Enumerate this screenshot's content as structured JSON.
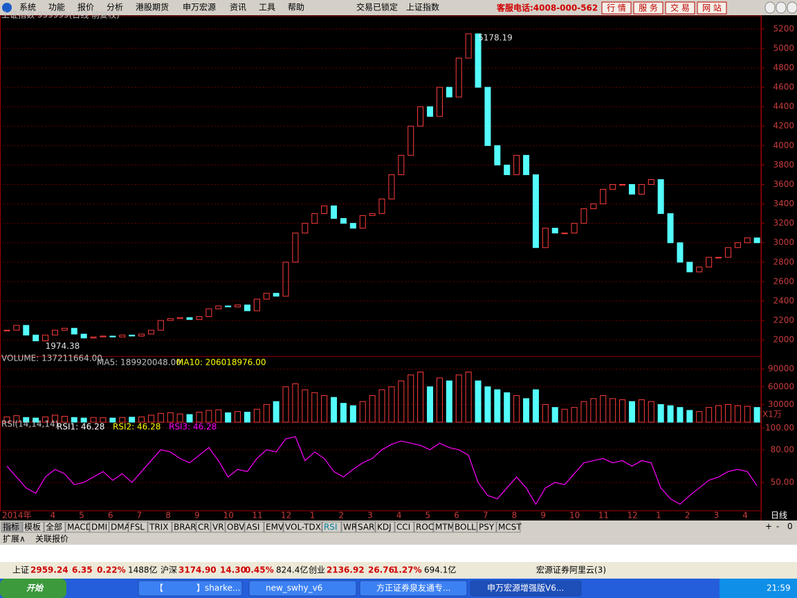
{
  "menu": {
    "items": [
      "系统",
      "功能",
      "报价",
      "分析",
      "港股期货",
      "申万宏源",
      "资讯",
      "工具",
      "帮助"
    ],
    "status": "交易已锁定",
    "index": "上证指数",
    "hotline": "客服电话:4008-000-562",
    "buttons": [
      "行 情",
      "服 务",
      "交 易",
      "网 站"
    ]
  },
  "chart_data": [
    {
      "type": "candlestick",
      "title": "上证指数 999999(日线 前复权)",
      "annotations": [
        "5178.19",
        "1974.38"
      ],
      "categories": [
        "2014年",
        null,
        null,
        null,
        null,
        "4",
        null,
        null,
        "5",
        null,
        null,
        "6",
        null,
        null,
        "7",
        null,
        null,
        "8",
        null,
        null,
        "9",
        null,
        null,
        "10",
        null,
        null,
        "11",
        null,
        null,
        "12",
        null,
        null,
        "1",
        null,
        null,
        "2",
        null,
        null,
        "3",
        null,
        null,
        "4",
        null,
        null,
        "5",
        null,
        null,
        "6",
        null,
        null,
        "7",
        null,
        null,
        "8",
        null,
        null,
        "9",
        null,
        null,
        "10",
        null,
        null,
        "11",
        null,
        null,
        "12",
        null,
        null,
        "1",
        null,
        null,
        "2",
        null,
        null,
        "3",
        null,
        null,
        "4",
        null
      ],
      "values": [
        2100,
        2150,
        2050,
        1990,
        2050,
        2100,
        2120,
        2060,
        2020,
        2030,
        2040,
        2030,
        2050,
        2040,
        2060,
        2100,
        2200,
        2220,
        2230,
        2210,
        2240,
        2320,
        2350,
        2340,
        2360,
        2300,
        2420,
        2480,
        2450,
        2800,
        3100,
        3200,
        3300,
        3380,
        3250,
        3200,
        3150,
        3280,
        3300,
        3450,
        3700,
        3900,
        4200,
        4400,
        4300,
        4600,
        4500,
        4900,
        5150,
        4600,
        4000,
        3800,
        3700,
        3900,
        3700,
        2950,
        3150,
        3100,
        3100,
        3200,
        3350,
        3400,
        3550,
        3600,
        3600,
        3500,
        3600,
        3650,
        3300,
        3000,
        2800,
        2700,
        2750,
        2850,
        2850,
        2950,
        3000,
        3050,
        3000
      ],
      "ylim": [
        1830,
        5320
      ],
      "yticks": [
        2000,
        2200,
        2400,
        2600,
        2800,
        3000,
        3200,
        3400,
        3600,
        3800,
        4000,
        4200,
        4400,
        4600,
        4800,
        5000,
        5200
      ],
      "up_color": "#ff3c3c",
      "down_color": "#54fcfc",
      "grid": true
    },
    {
      "type": "bar",
      "title": "VOLUME: 137211664.00",
      "annotations": [
        "MA5: 189920048.00",
        "MA10: 206018976.00"
      ],
      "unit": "X1万",
      "values": [
        9000,
        11000,
        8000,
        7000,
        9000,
        12000,
        10000,
        8000,
        7000,
        8000,
        7500,
        7000,
        8000,
        8500,
        9000,
        12000,
        15000,
        16000,
        14000,
        13000,
        17000,
        20000,
        21000,
        16000,
        18000,
        17000,
        22000,
        30000,
        35000,
        60000,
        65000,
        55000,
        50000,
        45000,
        42000,
        32000,
        28000,
        35000,
        45000,
        55000,
        60000,
        70000,
        80000,
        85000,
        60000,
        75000,
        70000,
        80000,
        85000,
        70000,
        60000,
        55000,
        50000,
        45000,
        40000,
        55000,
        30000,
        25000,
        22000,
        25000,
        35000,
        40000,
        45000,
        40000,
        38000,
        35000,
        38000,
        35000,
        30000,
        28000,
        25000,
        20000,
        18000,
        25000,
        28000,
        30000,
        28000,
        27000,
        25000
      ],
      "ylim": [
        0,
        109000
      ],
      "yticks": [
        30000,
        60000,
        90000
      ]
    },
    {
      "type": "line",
      "title": "RSI(14,14,14)",
      "series": [
        {
          "name": "RSI1: 46.28",
          "color": "#ffffff"
        },
        {
          "name": "RSI2: 46.28",
          "color": "#ffff00"
        },
        {
          "name": "RSI3: 46.28",
          "color": "#ff00ff"
        }
      ],
      "values": [
        65,
        55,
        45,
        40,
        55,
        62,
        58,
        48,
        50,
        55,
        60,
        52,
        58,
        50,
        60,
        70,
        80,
        78,
        72,
        68,
        75,
        82,
        70,
        55,
        62,
        60,
        72,
        80,
        78,
        90,
        92,
        70,
        78,
        72,
        60,
        55,
        62,
        68,
        72,
        80,
        85,
        88,
        86,
        84,
        80,
        86,
        82,
        80,
        75,
        50,
        38,
        35,
        45,
        55,
        45,
        30,
        45,
        50,
        48,
        58,
        68,
        70,
        72,
        68,
        70,
        65,
        70,
        68,
        45,
        35,
        30,
        38,
        45,
        52,
        55,
        60,
        62,
        60,
        47
      ],
      "color": "#ff00ff",
      "ylim": [
        24,
        104
      ],
      "yticks": [
        {
          "value": 50,
          "label": "50.00"
        },
        {
          "value": 80,
          "label": "80.00"
        },
        {
          "value": 100,
          "label": "100.00"
        }
      ]
    }
  ],
  "period": "日线",
  "zoom": [
    "+",
    "-",
    "0"
  ],
  "tabs": [
    "指标",
    "模板",
    "全部",
    "MACD",
    "DMI",
    "DMA",
    "FSL",
    "TRIX",
    "BRAR",
    "CR",
    "VR",
    "OBV",
    "ASI",
    "EMV",
    "VOL-TDX",
    "RSI",
    "WR",
    "SAR",
    "KDJ",
    "CCI",
    "ROC",
    "MTM",
    "BOLL",
    "PSY",
    "MCST"
  ],
  "subtabs": [
    "扩展∧",
    "关联报价"
  ],
  "status_bar": {
    "items": [
      [
        "上证",
        "2959.24",
        "6.35",
        "0.22%",
        "1488亿"
      ],
      [
        "沪深",
        "3174.90",
        "14.30",
        "0.45%",
        "824.4亿"
      ],
      [
        "创业",
        "2136.92",
        "26.76",
        "1.27%",
        "694.1亿"
      ]
    ],
    "server": "宏源证券阿里云(3)"
  },
  "taskbar": {
    "start": "开始",
    "tasks": [
      "【　　　　】sharke...",
      "new_swhy_v6",
      "方正证券泉友通专...",
      "申万宏源增强版V6..."
    ],
    "clock": "21:59"
  }
}
